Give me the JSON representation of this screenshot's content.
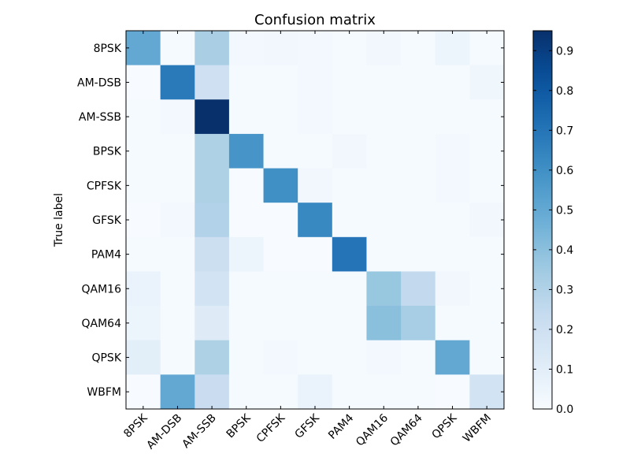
{
  "chart_data": {
    "type": "heatmap",
    "title": "Confusion matrix",
    "ylabel": "True label",
    "xlabel": "",
    "x_categories": [
      "8PSK",
      "AM-DSB",
      "AM-SSB",
      "BPSK",
      "CPFSK",
      "GFSK",
      "PAM4",
      "QAM16",
      "QAM64",
      "QPSK",
      "WBFM"
    ],
    "y_categories": [
      "8PSK",
      "AM-DSB",
      "AM-SSB",
      "BPSK",
      "CPFSK",
      "GFSK",
      "PAM4",
      "QAM16",
      "QAM64",
      "QPSK",
      "WBFM"
    ],
    "values": [
      [
        0.5,
        0.01,
        0.32,
        0.02,
        0.03,
        0.02,
        0.01,
        0.03,
        0.01,
        0.05,
        0.01
      ],
      [
        0.0,
        0.68,
        0.2,
        0.01,
        0.01,
        0.02,
        0.01,
        0.01,
        0.01,
        0.01,
        0.04
      ],
      [
        0.01,
        0.02,
        0.95,
        0.01,
        0.01,
        0.02,
        0.01,
        0.01,
        0.01,
        0.01,
        0.01
      ],
      [
        0.01,
        0.01,
        0.31,
        0.58,
        0.01,
        0.01,
        0.03,
        0.01,
        0.01,
        0.02,
        0.01
      ],
      [
        0.01,
        0.01,
        0.31,
        0.0,
        0.6,
        0.03,
        0.01,
        0.01,
        0.01,
        0.02,
        0.01
      ],
      [
        0.0,
        0.02,
        0.3,
        0.0,
        0.0,
        0.63,
        0.01,
        0.01,
        0.01,
        0.01,
        0.03
      ],
      [
        0.01,
        0.01,
        0.21,
        0.05,
        0.0,
        0.0,
        0.7,
        0.01,
        0.01,
        0.01,
        0.01
      ],
      [
        0.06,
        0.01,
        0.18,
        0.01,
        0.01,
        0.01,
        0.01,
        0.37,
        0.25,
        0.03,
        0.01
      ],
      [
        0.05,
        0.01,
        0.12,
        0.01,
        0.01,
        0.01,
        0.01,
        0.4,
        0.33,
        0.01,
        0.01
      ],
      [
        0.1,
        0.01,
        0.31,
        0.01,
        0.02,
        0.01,
        0.01,
        0.02,
        0.01,
        0.5,
        0.01
      ],
      [
        0.0,
        0.5,
        0.22,
        0.01,
        0.01,
        0.06,
        0.01,
        0.01,
        0.01,
        0.0,
        0.18
      ]
    ],
    "colorbar": {
      "min": 0.0,
      "max": 0.95,
      "ticks": [
        0.0,
        0.1,
        0.2,
        0.3,
        0.4,
        0.5,
        0.6,
        0.7,
        0.8,
        0.9
      ],
      "tick_labels": [
        "0.0",
        "0.1",
        "0.2",
        "0.3",
        "0.4",
        "0.5",
        "0.6",
        "0.7",
        "0.8",
        "0.9"
      ]
    },
    "colormap": "Blues",
    "colors": {
      "low": "#f7fbff",
      "high": "#08306b",
      "frame": "#000000",
      "text": "#000000"
    }
  }
}
